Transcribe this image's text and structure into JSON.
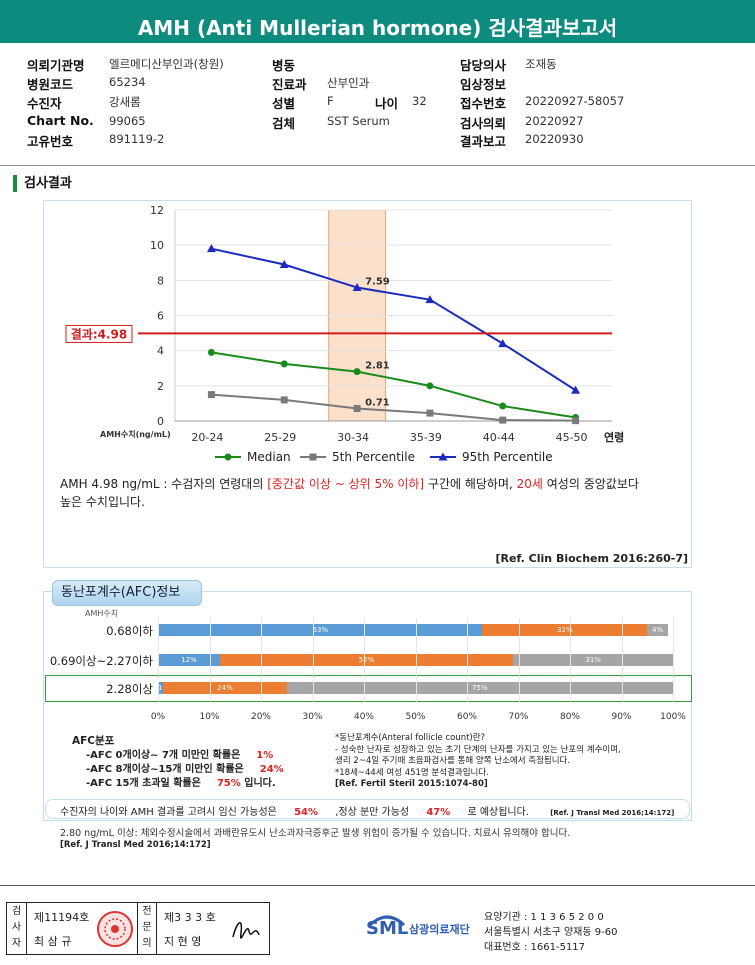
{
  "header": {
    "title": "AMH (Anti Mullerian hormone) 검사결과보고서"
  },
  "info": {
    "col1": [
      {
        "label": "의뢰기관명",
        "value": "엘르메디산부인과(창원)"
      },
      {
        "label": "병원코드",
        "value": "65234"
      },
      {
        "label": "수진자",
        "value": "강새롬"
      },
      {
        "label": "Chart No.",
        "value": "99065"
      },
      {
        "label": "고유번호",
        "value": "891119-2"
      }
    ],
    "col2": [
      {
        "label": "병동",
        "value": ""
      },
      {
        "label": "진료과",
        "value": "산부인과"
      },
      {
        "label": "성별",
        "value": "F"
      },
      {
        "label": "검체",
        "value": "SST Serum"
      }
    ],
    "age_label": "나이",
    "age_value": "32",
    "col3": [
      {
        "label": "담당의사",
        "value": "조재동"
      },
      {
        "label": "임상정보",
        "value": ""
      },
      {
        "label": "접수번호",
        "value": "20220927-58057"
      },
      {
        "label": "검사의뢰",
        "value": "20220927"
      },
      {
        "label": "결과보고",
        "value": "20220930"
      }
    ]
  },
  "section_title": "검사결과",
  "chart_data": {
    "type": "line",
    "categories": [
      "20-24",
      "25-29",
      "30-34",
      "35-39",
      "40-44",
      "45-50"
    ],
    "xlabel": "연령",
    "ylabel": "AMH수치(ng/mL)",
    "ylim": [
      0,
      12
    ],
    "yticks": [
      0,
      2,
      4,
      6,
      8,
      10,
      12
    ],
    "series": [
      {
        "name": "Median",
        "color": "#1a8a1a",
        "marker": "circle",
        "values": [
          3.9,
          3.25,
          2.81,
          2.0,
          0.85,
          0.2
        ]
      },
      {
        "name": "5th Percentile",
        "color": "#7a7a7a",
        "marker": "square",
        "values": [
          1.5,
          1.2,
          0.71,
          0.45,
          0.05,
          0.02
        ]
      },
      {
        "name": "95th Percentile",
        "color": "#1c2bbf",
        "marker": "triangle",
        "values": [
          9.8,
          8.9,
          7.59,
          6.9,
          4.4,
          1.75
        ]
      }
    ],
    "highlight_category": "30-34",
    "point_labels": [
      "7.59",
      "2.81",
      "0.71"
    ],
    "result_line": {
      "value": 4.98,
      "label": "결과:4.98",
      "color": "#d41b1b"
    }
  },
  "interpretation": {
    "pre": "AMH   4.98 ng/mL : 수검자의 연령대의 ",
    "range": "[중간값 이상 ~ 상위 5% 이하]",
    "mid": " 구간에 해당하며, ",
    "age": "20세",
    "post": " 여성의 중앙값보다",
    "line2": "높은 수치입니다.",
    "ref": "[Ref. Clin Biochem 2016:260-7]"
  },
  "afc": {
    "title": "동난포계수(AFC)정보",
    "unit_label": "AMH수치",
    "rows": [
      {
        "label": "0.68이하",
        "segments": [
          {
            "pct": 63,
            "text": "63%",
            "color": "#5b9bd5"
          },
          {
            "pct": 32,
            "text": "32%",
            "color": "#ed7d31"
          },
          {
            "pct": 4,
            "text": "4%",
            "color": "#a5a5a5"
          }
        ]
      },
      {
        "label": "0.69이상~2.27이하",
        "segments": [
          {
            "pct": 12,
            "text": "12%",
            "color": "#5b9bd5"
          },
          {
            "pct": 57,
            "text": "57%",
            "color": "#ed7d31"
          },
          {
            "pct": 31,
            "text": "31%",
            "color": "#a5a5a5"
          }
        ]
      },
      {
        "label": "2.28이상",
        "segments": [
          {
            "pct": 1,
            "text": "1%",
            "color": "#5b9bd5"
          },
          {
            "pct": 24,
            "text": "24%",
            "color": "#ed7d31"
          },
          {
            "pct": 75,
            "text": "75%",
            "color": "#a5a5a5"
          }
        ]
      }
    ],
    "axis_ticks": [
      "0%",
      "10%",
      "20%",
      "30%",
      "40%",
      "50%",
      "60%",
      "70%",
      "80%",
      "90%",
      "100%"
    ],
    "dist_title": "AFC분포",
    "dist": [
      {
        "text": "-AFC  0개이상~ 7개 미만인 확률은",
        "value": "1%"
      },
      {
        "text": "-AFC  8개이상~15개 미만인 확률은",
        "value": "24%"
      },
      {
        "text": "-AFC  15개 초과일 확률은",
        "value": "75%",
        "suffix": " 입니다."
      }
    ],
    "note_title": "*동난포계수(Anteral follicle count)란?",
    "note_lines": [
      "- 성숙한 난자로 성장하고 있는 초기 단계의 난자를 가지고 있는 난포의 계수이며,",
      "  생리 2~4일 주기때 초음파검사를 통해 양쪽 난소에서 측정됩니다.",
      "*18세~44세 여성 451명 분석결과입니다.",
      "[Ref. Fertil Steril 2015:1074-80]"
    ],
    "summary_pre": "수진자의 나이와 AMH 결과를 고려시 임신 가능성은",
    "summary_v1": "54%",
    "summary_mid": ",정상 분만 가능성",
    "summary_v2": "47%",
    "summary_post": "로 예상됩니다.",
    "summary_ref": "[Ref. J Transl Med 2016;14:172]"
  },
  "warning": {
    "text": "2.80  ng/mL  이상: 체외수정시술에서 과배란유도시 난소과자극증후군 발생 위험이 증가될 수 있습니다. 치료시 유의해야 합니다.",
    "ref": "[Ref. J Transl Med 2016;14:172]"
  },
  "footer": {
    "examiner_label": "검사자",
    "examiner_no": "제11194호",
    "examiner_name": "최 삼 규",
    "approver_label": "전문의",
    "approver_no": "제3 3 3 호",
    "approver_name": "지 현 영",
    "logo_text": "SML",
    "org_name": "삼광의료재단",
    "line1": "요양기관 : 1 1 3 6 5 2 0 0",
    "line2": "서울특별시 서초구 양재동 9-60",
    "line3": "대표번호 : 1661-5117"
  }
}
